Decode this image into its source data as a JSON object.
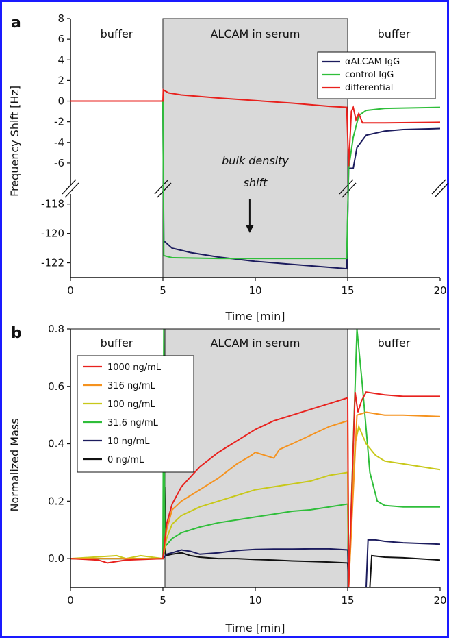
{
  "chart_data": [
    {
      "panel": "a",
      "type": "line",
      "xlabel": "Time [min]",
      "ylabel": "Frequency Shift [Hz]",
      "xlim": [
        0,
        20
      ],
      "x_ticks": [
        "0",
        "5",
        "10",
        "15",
        "20"
      ],
      "y_upper_ticks": [
        "8",
        "6",
        "4",
        "2",
        "0",
        "-2",
        "-4",
        "-6"
      ],
      "y_lower_ticks": [
        "-118",
        "-120",
        "-122"
      ],
      "y_upper_range": [
        -7,
        8
      ],
      "y_lower_range": [
        -123,
        -117.5
      ],
      "axis_break": true,
      "regions": [
        {
          "label": "buffer",
          "x": [
            0,
            5
          ],
          "shaded": false
        },
        {
          "label": "ALCAM in serum",
          "x": [
            5,
            15
          ],
          "shaded": true
        },
        {
          "label": "buffer",
          "x": [
            15,
            20
          ],
          "shaded": false
        }
      ],
      "annotation": {
        "line1": "bulk density",
        "line2": "shift"
      },
      "legend_position": "top-right",
      "series": [
        {
          "name": "αALCAM IgG",
          "color": "#1c1c5e",
          "points": [
            [
              0,
              0
            ],
            [
              5,
              0
            ],
            [
              5.05,
              -120.5
            ],
            [
              5.5,
              -121
            ],
            [
              6.5,
              -121.3
            ],
            [
              8,
              -121.6
            ],
            [
              10,
              -121.9
            ],
            [
              12,
              -122.1
            ],
            [
              14,
              -122.3
            ],
            [
              14.95,
              -122.4
            ],
            [
              15.05,
              -6.5
            ],
            [
              15.3,
              -6.5
            ],
            [
              15.5,
              -4.5
            ],
            [
              16,
              -3.3
            ],
            [
              17,
              -2.9
            ],
            [
              18,
              -2.75
            ],
            [
              20,
              -2.65
            ]
          ]
        },
        {
          "name": "control IgG",
          "color": "#2fbe3a",
          "points": [
            [
              0,
              0
            ],
            [
              5,
              0
            ],
            [
              5.05,
              -121.5
            ],
            [
              5.5,
              -121.65
            ],
            [
              8,
              -121.7
            ],
            [
              12,
              -121.7
            ],
            [
              14.95,
              -121.7
            ],
            [
              15.05,
              -6.5
            ],
            [
              15.3,
              -3.5
            ],
            [
              15.6,
              -1.4
            ],
            [
              16,
              -0.9
            ],
            [
              17,
              -0.7
            ],
            [
              20,
              -0.6
            ]
          ]
        },
        {
          "name": "differential",
          "color": "#e8211d",
          "points": [
            [
              0,
              0
            ],
            [
              5,
              0
            ],
            [
              5.02,
              1.1
            ],
            [
              5.3,
              0.8
            ],
            [
              6,
              0.6
            ],
            [
              8,
              0.3
            ],
            [
              10,
              0.05
            ],
            [
              12,
              -0.2
            ],
            [
              14,
              -0.5
            ],
            [
              14.95,
              -0.6
            ],
            [
              15.05,
              -6.3
            ],
            [
              15.2,
              -1.0
            ],
            [
              15.3,
              -0.6
            ],
            [
              15.45,
              -1.8
            ],
            [
              15.6,
              -1.2
            ],
            [
              15.8,
              -2.1
            ],
            [
              17,
              -2.1
            ],
            [
              20,
              -2.05
            ]
          ]
        }
      ]
    },
    {
      "panel": "b",
      "type": "line",
      "xlabel": "Time [min]",
      "ylabel": "Normalized Mass",
      "xlim": [
        0,
        20
      ],
      "ylim": [
        -0.1,
        0.8
      ],
      "x_ticks": [
        "0",
        "5",
        "10",
        "15",
        "20"
      ],
      "y_ticks": [
        "0.0",
        "0.2",
        "0.4",
        "0.6",
        "0.8"
      ],
      "regions": [
        {
          "label": "buffer",
          "x": [
            0,
            5
          ],
          "shaded": false
        },
        {
          "label": "ALCAM in serum",
          "x": [
            5,
            15
          ],
          "shaded": true
        },
        {
          "label": "buffer",
          "x": [
            15,
            20
          ],
          "shaded": false
        }
      ],
      "legend_position": "top-left",
      "series": [
        {
          "name": "1000 ng/mL",
          "color": "#e8211d",
          "points": [
            [
              0,
              0
            ],
            [
              1.5,
              -0.005
            ],
            [
              2,
              -0.015
            ],
            [
              3,
              -0.005
            ],
            [
              5,
              0
            ],
            [
              5.2,
              0.12
            ],
            [
              5.5,
              0.19
            ],
            [
              6,
              0.25
            ],
            [
              7,
              0.32
            ],
            [
              8,
              0.37
            ],
            [
              9,
              0.41
            ],
            [
              10,
              0.45
            ],
            [
              11,
              0.48
            ],
            [
              12,
              0.5
            ],
            [
              13,
              0.52
            ],
            [
              14,
              0.54
            ],
            [
              15,
              0.56
            ],
            [
              15.05,
              -0.1
            ],
            [
              15.4,
              0.58
            ],
            [
              15.55,
              0.51
            ],
            [
              15.75,
              0.55
            ],
            [
              16,
              0.58
            ],
            [
              17,
              0.57
            ],
            [
              18,
              0.565
            ],
            [
              20,
              0.565
            ]
          ]
        },
        {
          "name": "316 ng/mL",
          "color": "#f5921e",
          "points": [
            [
              0,
              0
            ],
            [
              5,
              0
            ],
            [
              5.2,
              0.1
            ],
            [
              5.5,
              0.17
            ],
            [
              6,
              0.2
            ],
            [
              7,
              0.24
            ],
            [
              8,
              0.28
            ],
            [
              9,
              0.33
            ],
            [
              9.8,
              0.36
            ],
            [
              10,
              0.37
            ],
            [
              10.5,
              0.36
            ],
            [
              11,
              0.35
            ],
            [
              11.3,
              0.38
            ],
            [
              12,
              0.4
            ],
            [
              13,
              0.43
            ],
            [
              14,
              0.46
            ],
            [
              15,
              0.48
            ],
            [
              15.05,
              -0.1
            ],
            [
              15.5,
              0.5
            ],
            [
              16,
              0.51
            ],
            [
              17,
              0.5
            ],
            [
              18,
              0.5
            ],
            [
              20,
              0.495
            ]
          ]
        },
        {
          "name": "100 ng/mL",
          "color": "#c8c81a",
          "points": [
            [
              0,
              0
            ],
            [
              2.5,
              0.01
            ],
            [
              3,
              0
            ],
            [
              3.8,
              0.01
            ],
            [
              5,
              0
            ],
            [
              5.2,
              0.07
            ],
            [
              5.5,
              0.12
            ],
            [
              6,
              0.15
            ],
            [
              7,
              0.18
            ],
            [
              8,
              0.2
            ],
            [
              9,
              0.22
            ],
            [
              10,
              0.24
            ],
            [
              11,
              0.25
            ],
            [
              12,
              0.26
            ],
            [
              13,
              0.27
            ],
            [
              14,
              0.29
            ],
            [
              15,
              0.3
            ],
            [
              15.05,
              -0.1
            ],
            [
              15.4,
              0.4
            ],
            [
              15.6,
              0.46
            ],
            [
              16,
              0.4
            ],
            [
              16.5,
              0.36
            ],
            [
              17,
              0.34
            ],
            [
              18,
              0.33
            ],
            [
              20,
              0.31
            ]
          ]
        },
        {
          "name": "31.6 ng/mL",
          "color": "#2fbe3a",
          "points": [
            [
              0,
              0
            ],
            [
              5,
              0
            ],
            [
              5.05,
              0.8
            ],
            [
              5.1,
              0.04
            ],
            [
              5.5,
              0.07
            ],
            [
              6,
              0.09
            ],
            [
              7,
              0.11
            ],
            [
              8,
              0.125
            ],
            [
              9,
              0.135
            ],
            [
              10,
              0.145
            ],
            [
              11,
              0.155
            ],
            [
              12,
              0.165
            ],
            [
              13,
              0.17
            ],
            [
              14,
              0.18
            ],
            [
              15,
              0.19
            ],
            [
              15.05,
              -0.1
            ],
            [
              15.5,
              0.8
            ],
            [
              15.8,
              0.6
            ],
            [
              16.2,
              0.3
            ],
            [
              16.6,
              0.2
            ],
            [
              17,
              0.185
            ],
            [
              18,
              0.18
            ],
            [
              20,
              0.18
            ]
          ]
        },
        {
          "name": "10 ng/mL",
          "color": "#1c1c5e",
          "points": [
            [
              0,
              0
            ],
            [
              5,
              0
            ],
            [
              5.2,
              0.015
            ],
            [
              5.5,
              0.02
            ],
            [
              6,
              0.03
            ],
            [
              6.5,
              0.025
            ],
            [
              7,
              0.015
            ],
            [
              8,
              0.02
            ],
            [
              9,
              0.028
            ],
            [
              10,
              0.032
            ],
            [
              11,
              0.033
            ],
            [
              12,
              0.033
            ],
            [
              13,
              0.034
            ],
            [
              14,
              0.034
            ],
            [
              15,
              0.03
            ],
            [
              15.05,
              -0.1
            ],
            [
              16,
              -0.1
            ],
            [
              16.1,
              0.065
            ],
            [
              16.5,
              0.065
            ],
            [
              17,
              0.06
            ],
            [
              18,
              0.055
            ],
            [
              20,
              0.05
            ]
          ]
        },
        {
          "name": "0 ng/mL",
          "color": "#111111",
          "points": [
            [
              0,
              0
            ],
            [
              5,
              0
            ],
            [
              5.1,
              0.25
            ],
            [
              5.15,
              0.01
            ],
            [
              5.5,
              0.015
            ],
            [
              6,
              0.02
            ],
            [
              6.5,
              0.01
            ],
            [
              7,
              0.005
            ],
            [
              8,
              0
            ],
            [
              9,
              0
            ],
            [
              10,
              -0.003
            ],
            [
              11,
              -0.005
            ],
            [
              12,
              -0.008
            ],
            [
              13,
              -0.01
            ],
            [
              14,
              -0.012
            ],
            [
              15,
              -0.015
            ],
            [
              15.05,
              -0.1
            ],
            [
              16.2,
              -0.1
            ],
            [
              16.3,
              0.01
            ],
            [
              17,
              0.005
            ],
            [
              18,
              0.003
            ],
            [
              20,
              -0.005
            ]
          ]
        }
      ]
    }
  ]
}
